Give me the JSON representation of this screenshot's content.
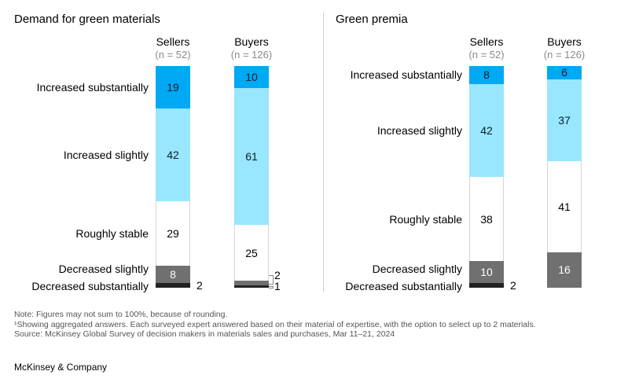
{
  "chart_data": [
    {
      "type": "stacked-bar",
      "title": "Demand for green materials",
      "categories": [
        "Increased substantially",
        "Increased slightly",
        "Roughly stable",
        "Decreased slightly",
        "Decreased substantially"
      ],
      "colors": [
        "#00a9f4",
        "#99e6ff",
        "#ffffff",
        "#707070",
        "#222222"
      ],
      "series": [
        {
          "name": "Sellers",
          "n": "(n = 52)",
          "values": [
            19,
            42,
            29,
            8,
            2
          ]
        },
        {
          "name": "Buyers",
          "n": "(n = 126)",
          "values": [
            10,
            61,
            25,
            2,
            1
          ]
        }
      ]
    },
    {
      "type": "stacked-bar",
      "title": "Green premia",
      "categories": [
        "Increased substantially",
        "Increased slightly",
        "Roughly stable",
        "Decreased slightly",
        "Decreased substantially"
      ],
      "colors": [
        "#00a9f4",
        "#99e6ff",
        "#ffffff",
        "#707070",
        "#222222"
      ],
      "series": [
        {
          "name": "Sellers",
          "n": "(n = 52)",
          "values": [
            8,
            42,
            38,
            10,
            2
          ]
        },
        {
          "name": "Buyers",
          "n": "(n = 126)",
          "values": [
            6,
            37,
            41,
            16,
            0
          ]
        }
      ]
    }
  ],
  "footnotes": [
    "Note: Figures may not sum to 100%, because of rounding.",
    "¹Showing aggregated answers. Each surveyed expert answered based on their material of expertise, with the option to select up to 2 materials.",
    "Source: McKinsey Global Survey of decision makers in materials sales and purchases, Mar 11–21, 2024"
  ],
  "brand": "McKinsey & Company"
}
